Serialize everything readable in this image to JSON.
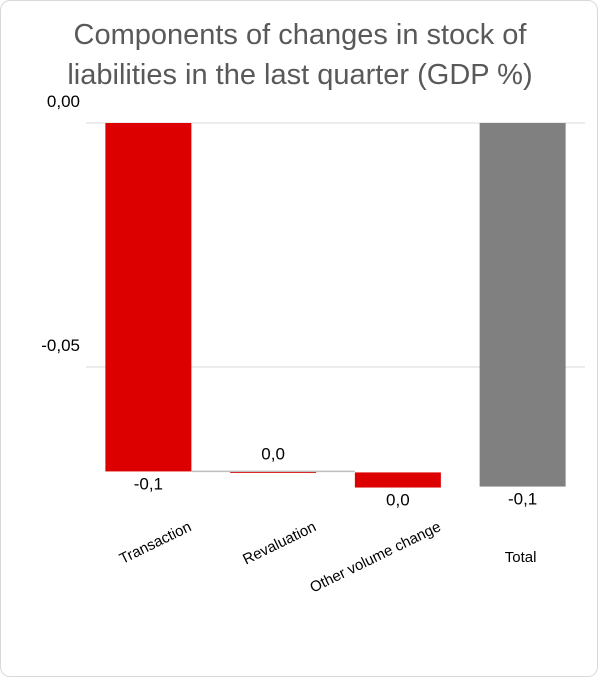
{
  "chart_data": {
    "type": "bar",
    "title_lines": [
      "Components of changes in stock of",
      "liabilities in the last quarter (GDP %)"
    ],
    "categories": [
      "Transaction",
      "Revaluation",
      "Other volume change",
      "Total"
    ],
    "values": [
      -0.0714,
      -0.0002,
      -0.0031,
      -0.0745
    ],
    "data_labels": [
      "-0,1",
      "0,0",
      "0,0",
      "-0,1"
    ],
    "colors": [
      "#dd0000",
      "#dd0000",
      "#dd0000",
      "#808080"
    ],
    "y_ticks": [
      {
        "value": 0,
        "label": "0,00"
      },
      {
        "value": -0.05,
        "label": "-0,05"
      }
    ],
    "ylim": [
      -0.08,
      0
    ],
    "grid": true,
    "legend": "none"
  }
}
